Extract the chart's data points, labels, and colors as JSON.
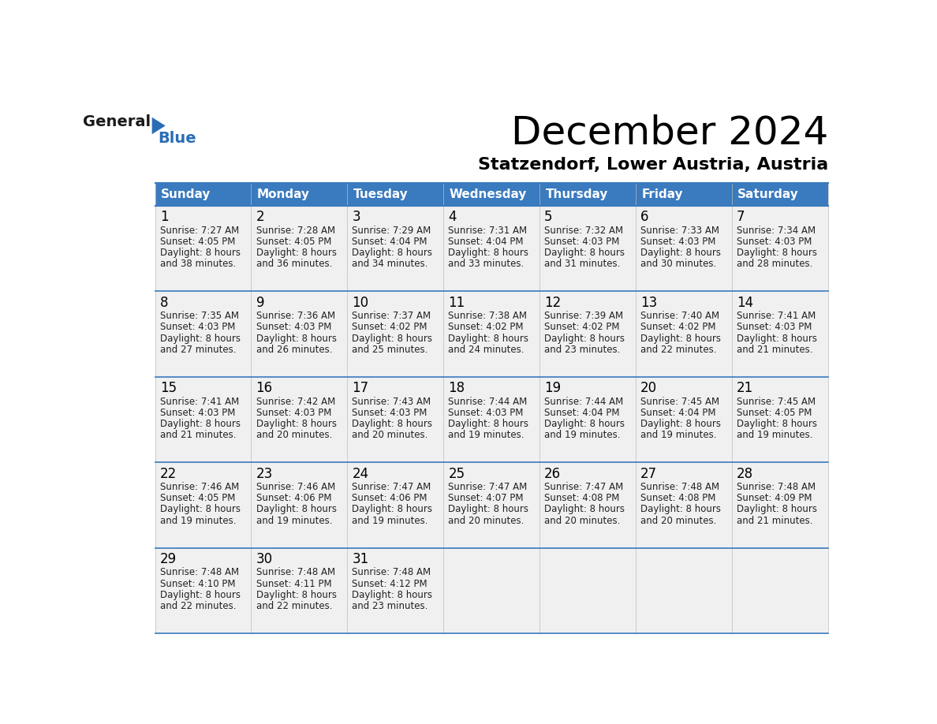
{
  "title": "December 2024",
  "subtitle": "Statzendorf, Lower Austria, Austria",
  "header_color": "#3a7abf",
  "header_text_color": "#ffffff",
  "cell_bg_color": "#f0f0f0",
  "border_color": "#3a7abf",
  "separator_color": "#3a7abf",
  "day_names": [
    "Sunday",
    "Monday",
    "Tuesday",
    "Wednesday",
    "Thursday",
    "Friday",
    "Saturday"
  ],
  "weeks": [
    [
      {
        "day": 1,
        "sunrise": "7:27 AM",
        "sunset": "4:05 PM",
        "daylight_hours": 8,
        "daylight_minutes": 38
      },
      {
        "day": 2,
        "sunrise": "7:28 AM",
        "sunset": "4:05 PM",
        "daylight_hours": 8,
        "daylight_minutes": 36
      },
      {
        "day": 3,
        "sunrise": "7:29 AM",
        "sunset": "4:04 PM",
        "daylight_hours": 8,
        "daylight_minutes": 34
      },
      {
        "day": 4,
        "sunrise": "7:31 AM",
        "sunset": "4:04 PM",
        "daylight_hours": 8,
        "daylight_minutes": 33
      },
      {
        "day": 5,
        "sunrise": "7:32 AM",
        "sunset": "4:03 PM",
        "daylight_hours": 8,
        "daylight_minutes": 31
      },
      {
        "day": 6,
        "sunrise": "7:33 AM",
        "sunset": "4:03 PM",
        "daylight_hours": 8,
        "daylight_minutes": 30
      },
      {
        "day": 7,
        "sunrise": "7:34 AM",
        "sunset": "4:03 PM",
        "daylight_hours": 8,
        "daylight_minutes": 28
      }
    ],
    [
      {
        "day": 8,
        "sunrise": "7:35 AM",
        "sunset": "4:03 PM",
        "daylight_hours": 8,
        "daylight_minutes": 27
      },
      {
        "day": 9,
        "sunrise": "7:36 AM",
        "sunset": "4:03 PM",
        "daylight_hours": 8,
        "daylight_minutes": 26
      },
      {
        "day": 10,
        "sunrise": "7:37 AM",
        "sunset": "4:02 PM",
        "daylight_hours": 8,
        "daylight_minutes": 25
      },
      {
        "day": 11,
        "sunrise": "7:38 AM",
        "sunset": "4:02 PM",
        "daylight_hours": 8,
        "daylight_minutes": 24
      },
      {
        "day": 12,
        "sunrise": "7:39 AM",
        "sunset": "4:02 PM",
        "daylight_hours": 8,
        "daylight_minutes": 23
      },
      {
        "day": 13,
        "sunrise": "7:40 AM",
        "sunset": "4:02 PM",
        "daylight_hours": 8,
        "daylight_minutes": 22
      },
      {
        "day": 14,
        "sunrise": "7:41 AM",
        "sunset": "4:03 PM",
        "daylight_hours": 8,
        "daylight_minutes": 21
      }
    ],
    [
      {
        "day": 15,
        "sunrise": "7:41 AM",
        "sunset": "4:03 PM",
        "daylight_hours": 8,
        "daylight_minutes": 21
      },
      {
        "day": 16,
        "sunrise": "7:42 AM",
        "sunset": "4:03 PM",
        "daylight_hours": 8,
        "daylight_minutes": 20
      },
      {
        "day": 17,
        "sunrise": "7:43 AM",
        "sunset": "4:03 PM",
        "daylight_hours": 8,
        "daylight_minutes": 20
      },
      {
        "day": 18,
        "sunrise": "7:44 AM",
        "sunset": "4:03 PM",
        "daylight_hours": 8,
        "daylight_minutes": 19
      },
      {
        "day": 19,
        "sunrise": "7:44 AM",
        "sunset": "4:04 PM",
        "daylight_hours": 8,
        "daylight_minutes": 19
      },
      {
        "day": 20,
        "sunrise": "7:45 AM",
        "sunset": "4:04 PM",
        "daylight_hours": 8,
        "daylight_minutes": 19
      },
      {
        "day": 21,
        "sunrise": "7:45 AM",
        "sunset": "4:05 PM",
        "daylight_hours": 8,
        "daylight_minutes": 19
      }
    ],
    [
      {
        "day": 22,
        "sunrise": "7:46 AM",
        "sunset": "4:05 PM",
        "daylight_hours": 8,
        "daylight_minutes": 19
      },
      {
        "day": 23,
        "sunrise": "7:46 AM",
        "sunset": "4:06 PM",
        "daylight_hours": 8,
        "daylight_minutes": 19
      },
      {
        "day": 24,
        "sunrise": "7:47 AM",
        "sunset": "4:06 PM",
        "daylight_hours": 8,
        "daylight_minutes": 19
      },
      {
        "day": 25,
        "sunrise": "7:47 AM",
        "sunset": "4:07 PM",
        "daylight_hours": 8,
        "daylight_minutes": 20
      },
      {
        "day": 26,
        "sunrise": "7:47 AM",
        "sunset": "4:08 PM",
        "daylight_hours": 8,
        "daylight_minutes": 20
      },
      {
        "day": 27,
        "sunrise": "7:48 AM",
        "sunset": "4:08 PM",
        "daylight_hours": 8,
        "daylight_minutes": 20
      },
      {
        "day": 28,
        "sunrise": "7:48 AM",
        "sunset": "4:09 PM",
        "daylight_hours": 8,
        "daylight_minutes": 21
      }
    ],
    [
      {
        "day": 29,
        "sunrise": "7:48 AM",
        "sunset": "4:10 PM",
        "daylight_hours": 8,
        "daylight_minutes": 22
      },
      {
        "day": 30,
        "sunrise": "7:48 AM",
        "sunset": "4:11 PM",
        "daylight_hours": 8,
        "daylight_minutes": 22
      },
      {
        "day": 31,
        "sunrise": "7:48 AM",
        "sunset": "4:12 PM",
        "daylight_hours": 8,
        "daylight_minutes": 23
      },
      null,
      null,
      null,
      null
    ]
  ],
  "logo_color_general": "#1a1a1a",
  "logo_color_blue": "#2a6db5",
  "logo_triangle_color": "#2a6db5",
  "title_fontsize": 36,
  "subtitle_fontsize": 16,
  "header_fontsize": 11,
  "day_num_fontsize": 12,
  "cell_text_fontsize": 8.5
}
